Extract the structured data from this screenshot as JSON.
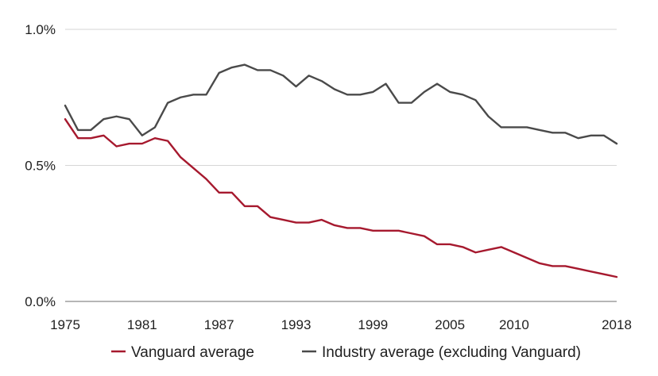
{
  "chart_data": {
    "type": "line",
    "title": "",
    "xlabel": "",
    "ylabel": "",
    "xlim": [
      1975,
      2018
    ],
    "ylim": [
      0.0,
      1.0
    ],
    "x_ticks": [
      1975,
      1981,
      1987,
      1993,
      1999,
      2005,
      2010,
      2018
    ],
    "x_tick_labels": [
      "1975",
      "1981",
      "1987",
      "1993",
      "1999",
      "2005",
      "2010",
      "2018"
    ],
    "y_ticks": [
      0.0,
      0.5,
      1.0
    ],
    "y_tick_labels": [
      "0.0%",
      "0.5%",
      "1.0%"
    ],
    "grid": "horizontal",
    "legend_position": "bottom",
    "x": [
      1975,
      1976,
      1977,
      1978,
      1979,
      1980,
      1981,
      1982,
      1983,
      1984,
      1985,
      1986,
      1987,
      1988,
      1989,
      1990,
      1991,
      1992,
      1993,
      1994,
      1995,
      1996,
      1997,
      1998,
      1999,
      2000,
      2001,
      2002,
      2003,
      2004,
      2005,
      2006,
      2007,
      2008,
      2009,
      2010,
      2011,
      2012,
      2013,
      2014,
      2015,
      2016,
      2017,
      2018
    ],
    "series": [
      {
        "name": "Vanguard average",
        "color": "#a6192e",
        "values": [
          0.67,
          0.6,
          0.6,
          0.61,
          0.57,
          0.58,
          0.58,
          0.6,
          0.59,
          0.53,
          0.49,
          0.45,
          0.4,
          0.4,
          0.35,
          0.35,
          0.31,
          0.3,
          0.29,
          0.29,
          0.3,
          0.28,
          0.27,
          0.27,
          0.26,
          0.26,
          0.26,
          0.25,
          0.24,
          0.21,
          0.21,
          0.2,
          0.18,
          0.19,
          0.2,
          0.18,
          0.16,
          0.14,
          0.13,
          0.13,
          0.12,
          0.11,
          0.1,
          0.09
        ]
      },
      {
        "name": "Industry average (excluding Vanguard)",
        "color": "#4a4a4a",
        "values": [
          0.72,
          0.63,
          0.63,
          0.67,
          0.68,
          0.67,
          0.61,
          0.64,
          0.73,
          0.75,
          0.76,
          0.76,
          0.84,
          0.86,
          0.87,
          0.85,
          0.85,
          0.83,
          0.79,
          0.83,
          0.81,
          0.78,
          0.76,
          0.76,
          0.77,
          0.8,
          0.73,
          0.73,
          0.77,
          0.8,
          0.77,
          0.76,
          0.74,
          0.68,
          0.64,
          0.64,
          0.64,
          0.63,
          0.62,
          0.62,
          0.6,
          0.61,
          0.61,
          0.58
        ]
      }
    ]
  }
}
